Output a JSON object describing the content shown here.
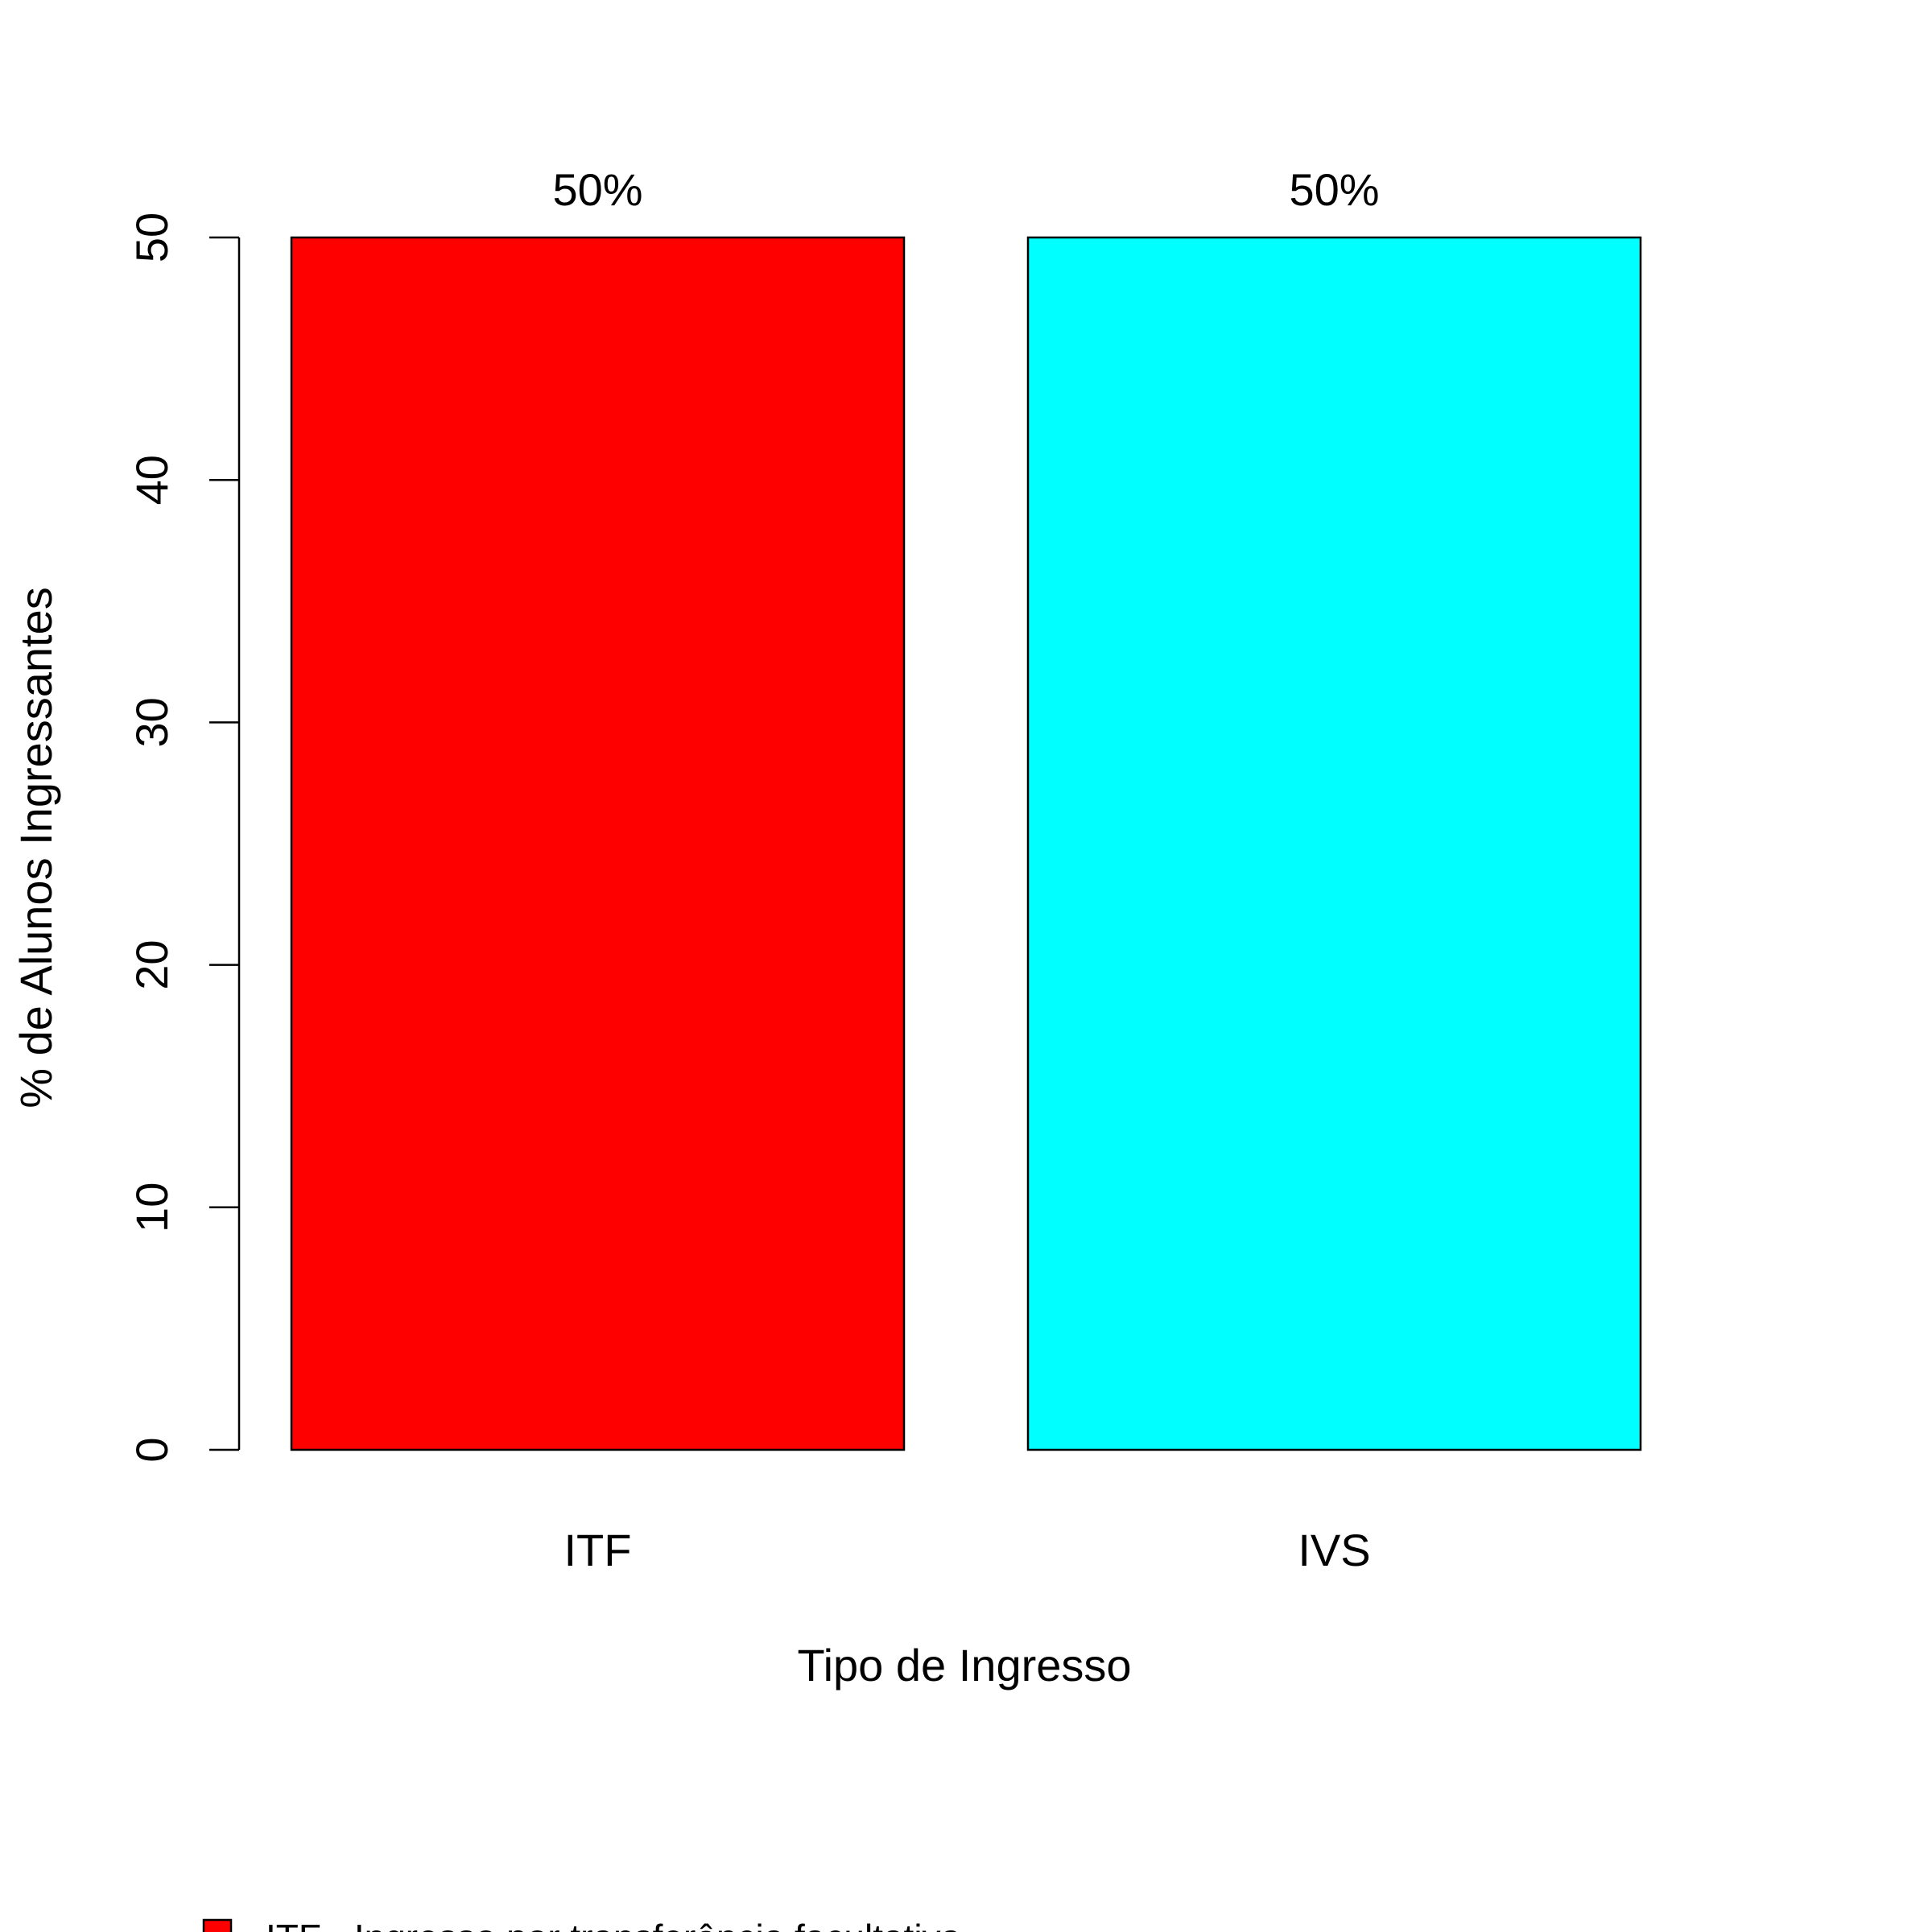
{
  "chart_data": {
    "type": "bar",
    "title": "",
    "xlabel": "Tipo de Ingresso",
    "ylabel": "% de Alunos Ingressantes",
    "ylim": [
      0,
      50
    ],
    "yticks": [
      0,
      10,
      20,
      30,
      40,
      50
    ],
    "grid": false,
    "categories": [
      "ITF",
      "IVS"
    ],
    "values": [
      50,
      50
    ],
    "data_labels": [
      "50%",
      "50%"
    ],
    "colors": [
      "#ff0000",
      "#00ffff"
    ],
    "legend": {
      "placement": "bottom-left",
      "entries": [
        {
          "label": "ITF - Ingresso por transferência facultativa",
          "color": "#ff0000"
        }
      ]
    }
  }
}
